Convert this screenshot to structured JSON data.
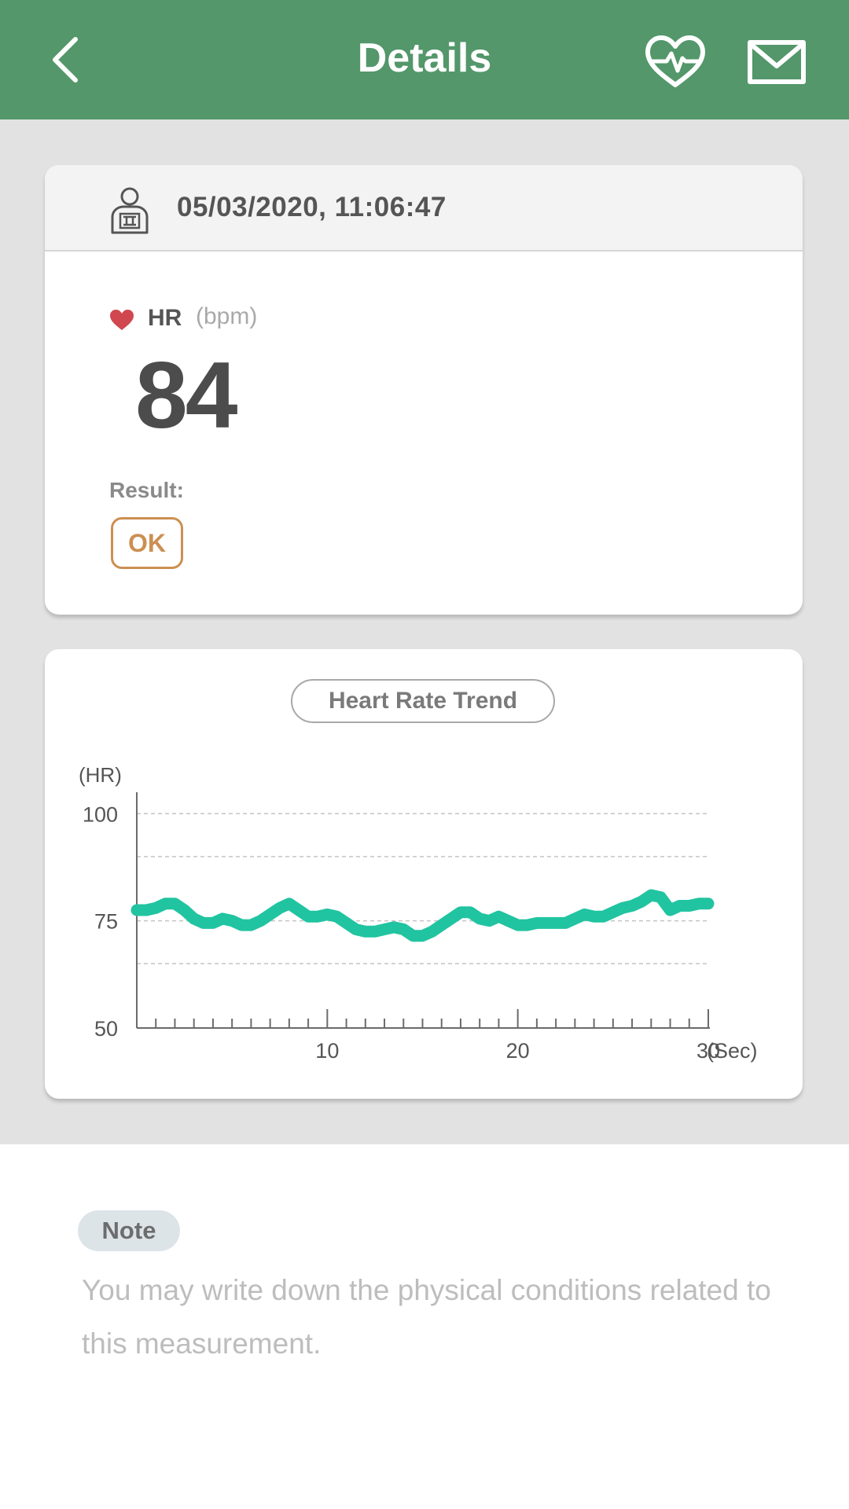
{
  "header": {
    "title": "Details",
    "back_icon": "chevron-left-icon",
    "actions": [
      "heart-rate-icon",
      "mail-icon"
    ],
    "color": "#53976a"
  },
  "measurement": {
    "datetime": "05/03/2020, 11:06:47",
    "user_icon": "person-icon",
    "hr_label": "HR",
    "hr_unit": "(bpm)",
    "hr_value": "84",
    "result_label": "Result:",
    "result_value": "OK",
    "result_color": "#cc8f52"
  },
  "trend": {
    "title": "Heart Rate Trend",
    "line_color": "#20c4a0"
  },
  "chart_data": {
    "type": "line",
    "title": "Heart Rate Trend",
    "ylabel": "(HR)",
    "xlabel": "(Sec)",
    "ylim": [
      50,
      105
    ],
    "xlim": [
      0,
      30
    ],
    "y_ticks": [
      "100",
      "75",
      "50"
    ],
    "x_ticks": [
      "10",
      "20",
      "30"
    ],
    "grid": true,
    "series": [
      {
        "x": [
          0,
          0.5,
          1,
          1.5,
          2,
          2.5,
          3,
          3.5,
          4,
          4.5,
          5,
          5.5,
          6,
          6.5,
          7,
          7.5,
          8,
          8.5,
          9,
          9.5,
          10,
          10.5,
          11,
          11.5,
          12,
          12.5,
          13,
          13.5,
          14,
          14.5,
          15,
          15.5,
          16,
          16.5,
          17,
          17.5,
          18,
          18.5,
          19,
          19.5,
          20,
          20.5,
          21,
          21.5,
          22,
          22.5,
          23,
          23.5,
          24,
          24.5,
          25,
          25.5,
          26,
          26.5,
          27,
          27.5,
          28,
          28.5,
          29,
          29.5,
          30
        ],
        "values": [
          77.5,
          77.5,
          78,
          79,
          79,
          77.5,
          75.5,
          74.5,
          74.5,
          75.5,
          75,
          74,
          74,
          75,
          76.5,
          78,
          79,
          77.5,
          76,
          76,
          76.5,
          76,
          74.5,
          73,
          72.5,
          72.5,
          73,
          73.5,
          73,
          71.5,
          71.5,
          72.5,
          74,
          75.5,
          77,
          77,
          75.5,
          75,
          76,
          75,
          74,
          74,
          74.5,
          74.5,
          74.5,
          74.5,
          75.5,
          76.5,
          76,
          76,
          77,
          78,
          78.5,
          79.5,
          81,
          80.5,
          77.5,
          78.5,
          78.5,
          79,
          79
        ]
      }
    ]
  },
  "note": {
    "label": "Note",
    "placeholder": "You may write down the physical conditions related to this measurement."
  }
}
